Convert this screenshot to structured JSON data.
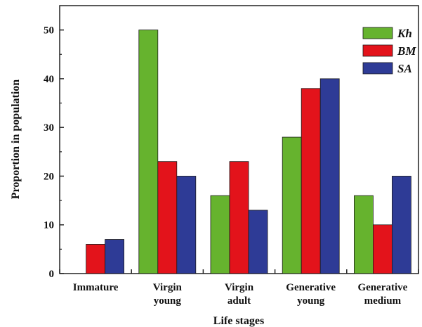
{
  "chart_data": {
    "type": "bar",
    "title": "",
    "xlabel": "Life stages",
    "ylabel": "Proportion in population",
    "ylim": [
      0,
      55
    ],
    "yticks": [
      0,
      10,
      20,
      30,
      40,
      50
    ],
    "grid": false,
    "legend_position": "top-right",
    "categories": [
      [
        "Immature"
      ],
      [
        "Virgin",
        "young"
      ],
      [
        "Virgin",
        "adult"
      ],
      [
        "Generative",
        "young"
      ],
      [
        "Generative",
        "medium"
      ]
    ],
    "series": [
      {
        "name": "Kh",
        "color": "#66b32e",
        "values": [
          0,
          50,
          16,
          28,
          16
        ]
      },
      {
        "name": "BM",
        "color": "#e3131b",
        "values": [
          6,
          23,
          23,
          38,
          10
        ]
      },
      {
        "name": "SA",
        "color": "#2e3b96",
        "values": [
          7,
          20,
          13,
          40,
          20
        ]
      }
    ]
  }
}
